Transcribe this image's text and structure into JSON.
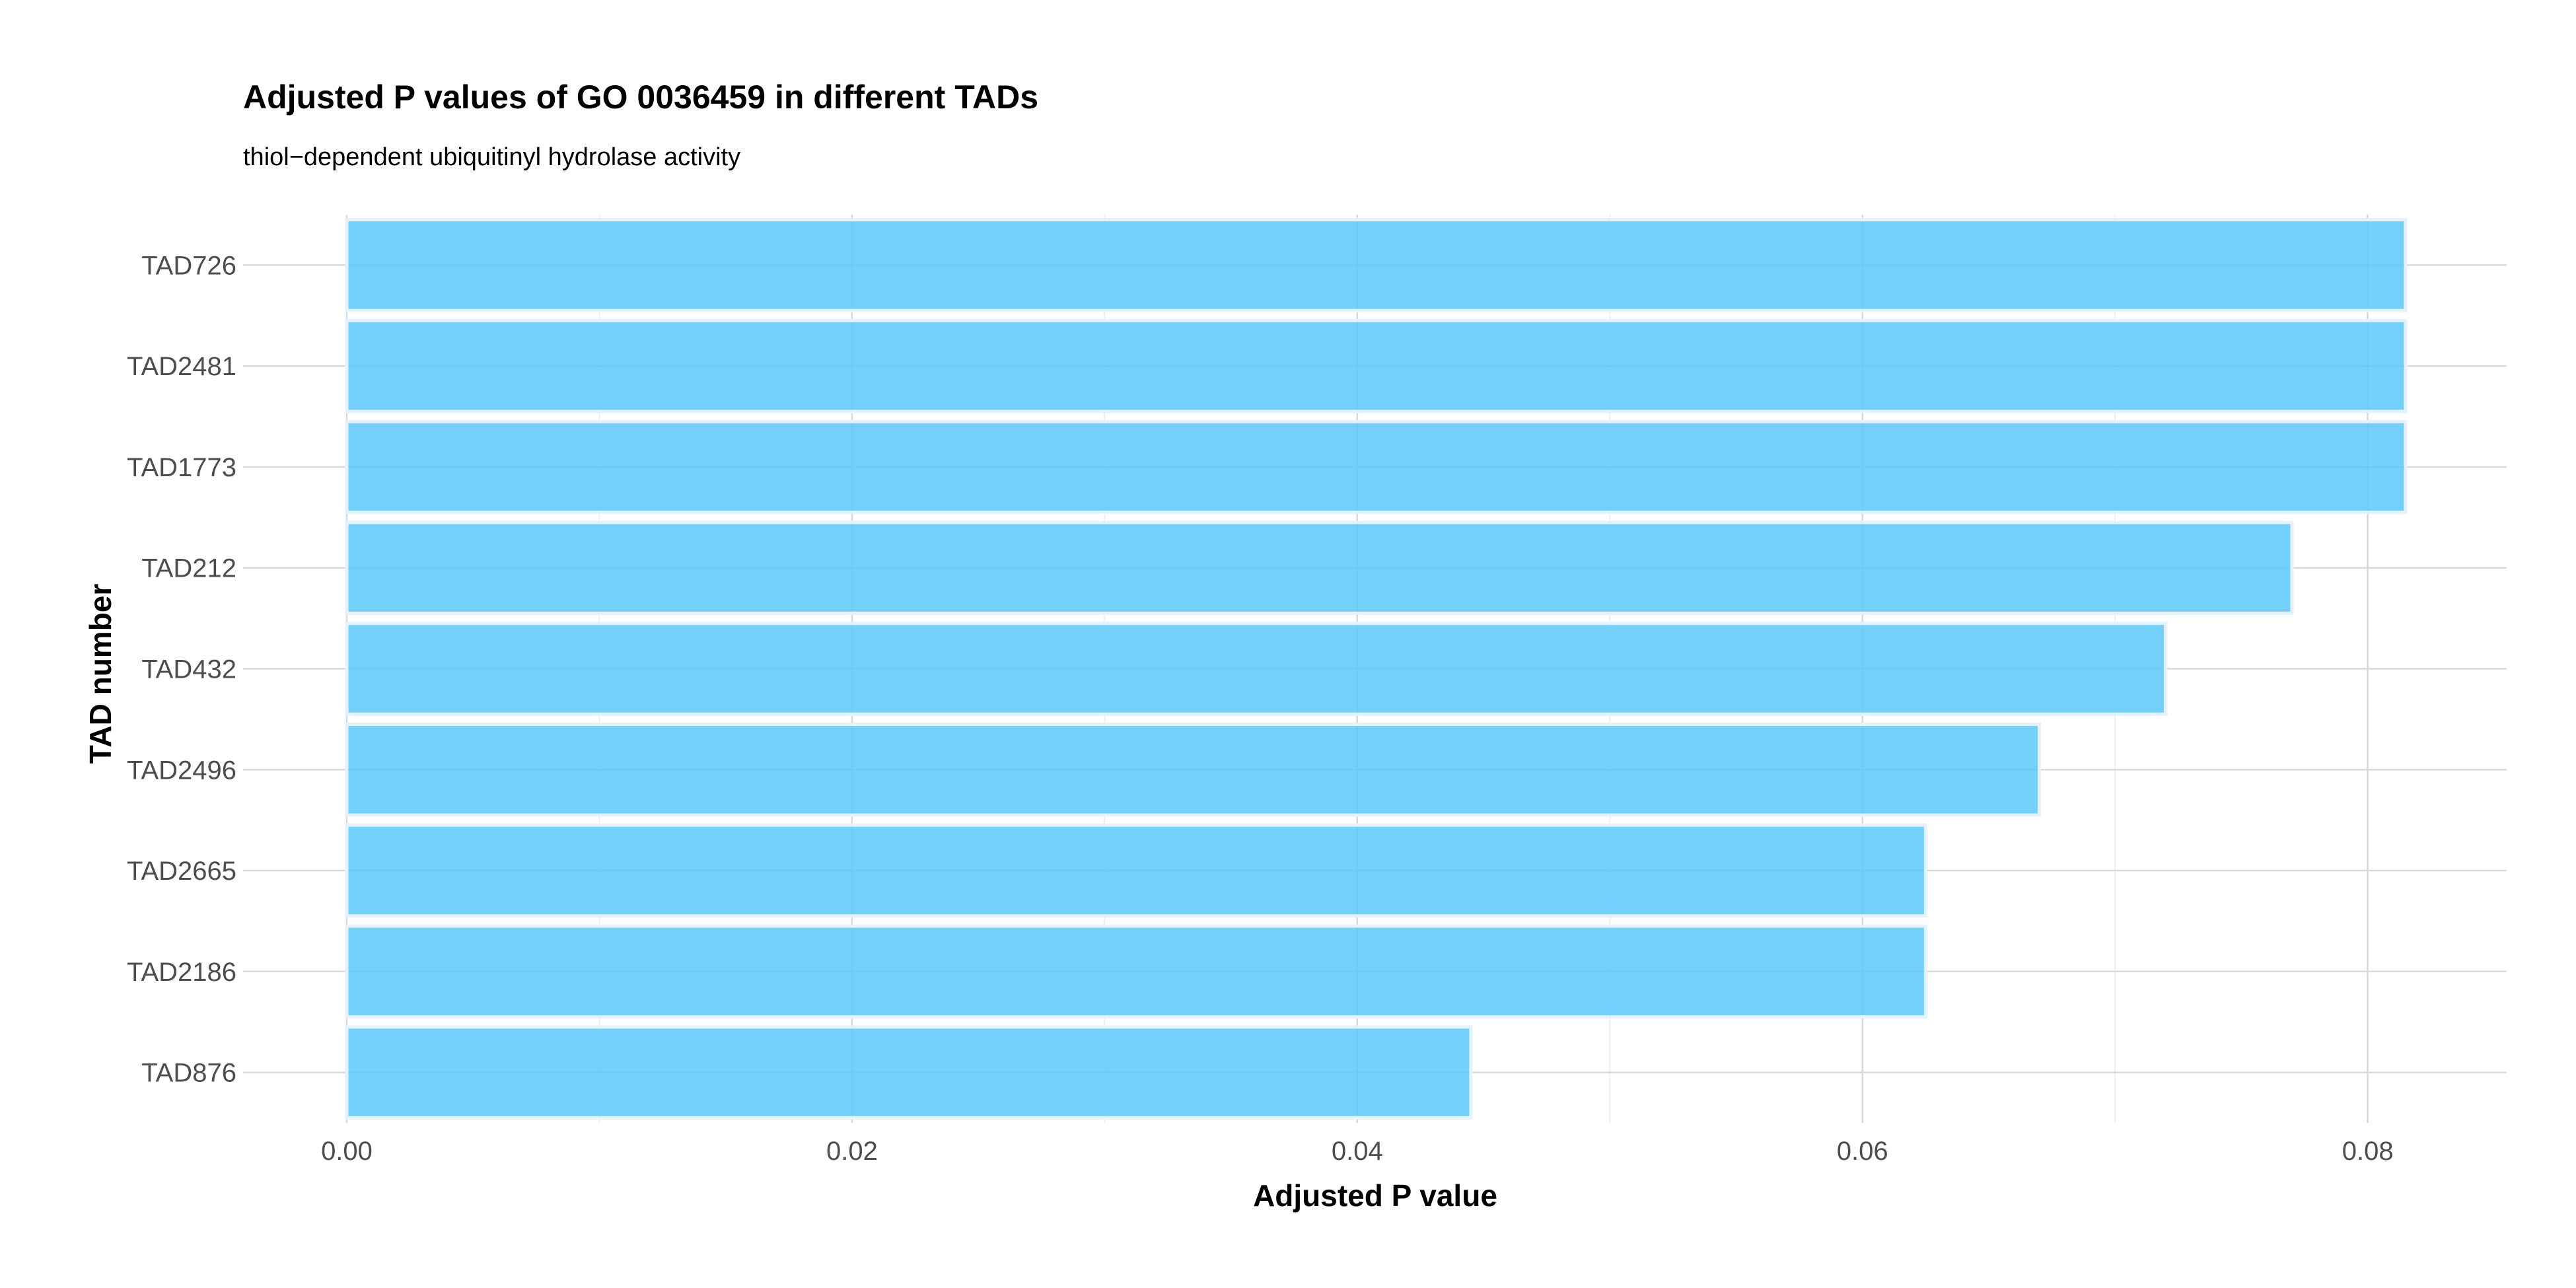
{
  "chart_data": {
    "type": "bar",
    "orientation": "horizontal",
    "title": "Adjusted P values of GO 0036459 in different TADs",
    "subtitle": "thiol−dependent ubiquitinyl hydrolase activity",
    "xlabel": "Adjusted P value",
    "ylabel": "TAD number",
    "categories": [
      "TAD726",
      "TAD2481",
      "TAD1773",
      "TAD212",
      "TAD432",
      "TAD2496",
      "TAD2665",
      "TAD2186",
      "TAD876"
    ],
    "values": [
      0.0815,
      0.0815,
      0.0815,
      0.077,
      0.072,
      0.067,
      0.0625,
      0.0625,
      0.0445
    ],
    "xlim": [
      0,
      0.0855
    ],
    "x_ticks": [
      0,
      0.02,
      0.04,
      0.06,
      0.08
    ],
    "x_tick_labels": [
      "0.00",
      "0.02",
      "0.04",
      "0.06",
      "0.08"
    ],
    "grid": true,
    "legend": "none",
    "bar_color": "#5ac8fa",
    "bar_opacity": 0.85,
    "bar_outline_color": "#e6f2fa"
  }
}
